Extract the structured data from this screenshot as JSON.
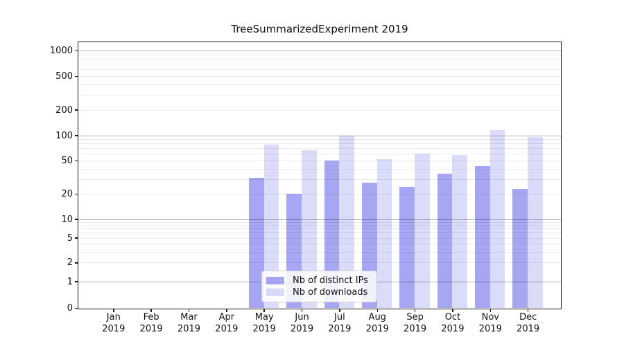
{
  "chart_data": {
    "type": "bar",
    "title": "TreeSummarizedExperiment 2019",
    "categories": [
      "Jan",
      "Feb",
      "Mar",
      "Apr",
      "May",
      "Jun",
      "Jul",
      "Aug",
      "Sep",
      "Oct",
      "Nov",
      "Dec"
    ],
    "x_tick_second_line": "2019",
    "series": [
      {
        "name": "Nb of distinct IPs",
        "color": "rgba(93,93,232,0.55)",
        "values": [
          0,
          0,
          0,
          0,
          31,
          20,
          50,
          27,
          24,
          35,
          43,
          23
        ]
      },
      {
        "name": "Nb of downloads",
        "color": "rgba(93,93,232,0.22)",
        "values": [
          0,
          0,
          0,
          0,
          77,
          67,
          100,
          52,
          60,
          58,
          116,
          95
        ]
      }
    ],
    "yscale": "symlog",
    "y_ticks": [
      0,
      1,
      2,
      5,
      10,
      20,
      50,
      100,
      200,
      500,
      1000
    ],
    "y_tick_labels": [
      "0",
      "1",
      "2",
      "5",
      "10",
      "20",
      "50",
      "100",
      "200",
      "500",
      "1000"
    ],
    "ylim": [
      0,
      1270
    ],
    "xlabel": "",
    "ylabel": "",
    "grid": "both",
    "legend_position": "lower center",
    "colors": {
      "bar_dark": "#a7a7f0",
      "bar_light": "#dcdcf9",
      "major_grid": "rgba(0,0,0,0.30)",
      "minor_grid": "rgba(0,0,0,0.08)",
      "spine": "#1a1a1a",
      "background": "#ffffff"
    }
  }
}
